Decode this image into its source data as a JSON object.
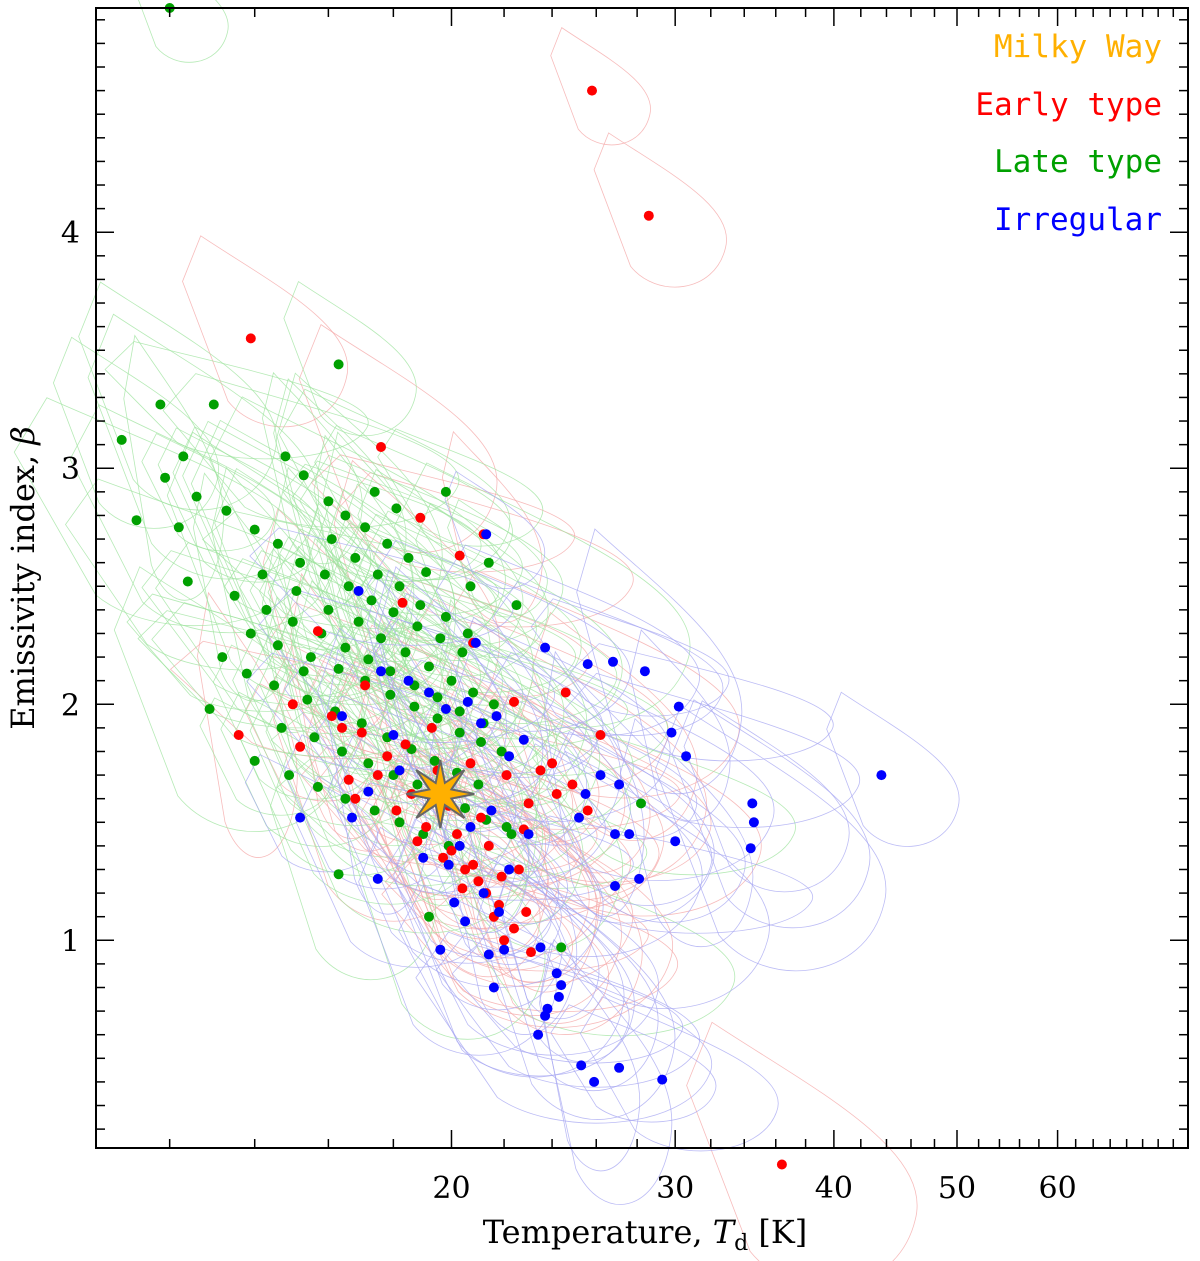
{
  "chart_data": {
    "type": "scatter",
    "xlabel": "Temperature, ",
    "xlabel_symbol": "T",
    "xlabel_subscript": "d",
    "xlabel_unit": " [K]",
    "ylabel": "Emissivity index, ",
    "ylabel_symbol": "β",
    "x_scale": "log",
    "xlim": [
      10.5,
      76
    ],
    "ylim": [
      0.12,
      4.95
    ],
    "x_ticks": [
      20,
      30,
      40,
      50,
      60
    ],
    "y_ticks": [
      1,
      2,
      3,
      4
    ],
    "grid": false,
    "legend_position": "top-right",
    "legend": [
      "Milky Way",
      "Early type",
      "Late type",
      "Irregular"
    ],
    "colors": {
      "milky_way": "#FFB000",
      "early": "#FF0000",
      "late": "#00A000",
      "irregular": "#0000FF"
    },
    "milky_way": {
      "T": 19.6,
      "beta": 1.62
    },
    "series": [
      {
        "name": "Early type",
        "color": "#FF0000",
        "points": [
          [
            25.8,
            4.6
          ],
          [
            28.6,
            4.07
          ],
          [
            13.9,
            3.55
          ],
          [
            17.6,
            3.09
          ],
          [
            36.4,
            0.05
          ],
          [
            18.9,
            2.79
          ],
          [
            20.3,
            2.63
          ],
          [
            21.2,
            2.72
          ],
          [
            15.7,
            2.31
          ],
          [
            18.3,
            2.43
          ],
          [
            20.8,
            2.26
          ],
          [
            17.1,
            2.08
          ],
          [
            22.4,
            2.01
          ],
          [
            24.6,
            2.05
          ],
          [
            13.6,
            1.87
          ],
          [
            15.2,
            1.82
          ],
          [
            16.4,
            1.9
          ],
          [
            17.8,
            1.78
          ],
          [
            19.5,
            1.72
          ],
          [
            20.7,
            1.75
          ],
          [
            22.1,
            1.7
          ],
          [
            23.5,
            1.72
          ],
          [
            24.9,
            1.66
          ],
          [
            26.2,
            1.87
          ],
          [
            16.8,
            1.6
          ],
          [
            18.1,
            1.55
          ],
          [
            19.1,
            1.48
          ],
          [
            20.2,
            1.45
          ],
          [
            21.4,
            1.4
          ],
          [
            22.6,
            1.3
          ],
          [
            18.8,
            1.42
          ],
          [
            19.7,
            1.35
          ],
          [
            20.5,
            1.3
          ],
          [
            21.0,
            1.25
          ],
          [
            21.8,
            1.15
          ],
          [
            22.4,
            1.05
          ],
          [
            23.1,
            0.95
          ],
          [
            20.0,
            1.38
          ],
          [
            20.8,
            1.32
          ],
          [
            21.3,
            1.2
          ],
          [
            21.6,
            1.1
          ],
          [
            22.0,
            1.0
          ],
          [
            17.5,
            1.7
          ],
          [
            18.6,
            1.62
          ],
          [
            19.9,
            1.57
          ],
          [
            21.1,
            1.52
          ],
          [
            22.8,
            1.47
          ],
          [
            24.2,
            1.62
          ],
          [
            25.6,
            1.55
          ],
          [
            16.1,
            1.95
          ],
          [
            17.0,
            1.88
          ],
          [
            18.4,
            1.83
          ],
          [
            19.3,
            1.9
          ],
          [
            23.0,
            1.58
          ],
          [
            24.0,
            1.75
          ],
          [
            15.0,
            2.0
          ],
          [
            16.6,
            1.68
          ],
          [
            20.4,
            1.22
          ],
          [
            21.9,
            1.27
          ],
          [
            22.9,
            1.12
          ]
        ]
      },
      {
        "name": "Late type",
        "color": "#00A000",
        "points": [
          [
            12.0,
            4.95
          ],
          [
            16.3,
            3.44
          ],
          [
            11.0,
            3.12
          ],
          [
            11.8,
            3.27
          ],
          [
            12.3,
            3.05
          ],
          [
            13.0,
            3.27
          ],
          [
            14.8,
            3.05
          ],
          [
            15.3,
            2.97
          ],
          [
            16.0,
            2.86
          ],
          [
            16.5,
            2.8
          ],
          [
            17.1,
            2.75
          ],
          [
            17.8,
            2.68
          ],
          [
            18.5,
            2.62
          ],
          [
            11.3,
            2.78
          ],
          [
            11.9,
            2.96
          ],
          [
            12.6,
            2.88
          ],
          [
            13.3,
            2.82
          ],
          [
            14.0,
            2.74
          ],
          [
            14.6,
            2.68
          ],
          [
            15.2,
            2.6
          ],
          [
            15.9,
            2.55
          ],
          [
            16.6,
            2.5
          ],
          [
            17.3,
            2.44
          ],
          [
            18.0,
            2.39
          ],
          [
            18.8,
            2.33
          ],
          [
            19.6,
            2.28
          ],
          [
            20.4,
            2.22
          ],
          [
            12.4,
            2.52
          ],
          [
            13.5,
            2.46
          ],
          [
            14.3,
            2.4
          ],
          [
            15.0,
            2.35
          ],
          [
            15.8,
            2.3
          ],
          [
            16.5,
            2.24
          ],
          [
            17.2,
            2.19
          ],
          [
            17.9,
            2.14
          ],
          [
            18.7,
            2.08
          ],
          [
            19.5,
            2.03
          ],
          [
            20.3,
            1.97
          ],
          [
            21.2,
            1.92
          ],
          [
            12.9,
            1.98
          ],
          [
            13.8,
            2.13
          ],
          [
            14.5,
            2.08
          ],
          [
            15.4,
            2.02
          ],
          [
            16.2,
            1.97
          ],
          [
            17.0,
            1.92
          ],
          [
            17.8,
            1.86
          ],
          [
            18.6,
            1.81
          ],
          [
            19.4,
            1.76
          ],
          [
            20.2,
            1.71
          ],
          [
            21.0,
            1.66
          ],
          [
            14.0,
            1.76
          ],
          [
            14.9,
            1.7
          ],
          [
            15.7,
            1.65
          ],
          [
            16.5,
            1.6
          ],
          [
            17.4,
            1.55
          ],
          [
            18.2,
            1.5
          ],
          [
            19.0,
            1.45
          ],
          [
            19.9,
            1.4
          ],
          [
            16.3,
            1.28
          ],
          [
            19.2,
            1.1
          ],
          [
            22.3,
            1.45
          ],
          [
            28.2,
            1.58
          ],
          [
            24.4,
            0.97
          ],
          [
            16.8,
            2.62
          ],
          [
            17.5,
            2.55
          ],
          [
            18.2,
            2.5
          ],
          [
            18.9,
            2.42
          ],
          [
            19.8,
            2.37
          ],
          [
            20.6,
            2.3
          ],
          [
            16.1,
            2.7
          ],
          [
            16.9,
            2.35
          ],
          [
            17.6,
            2.28
          ],
          [
            18.4,
            2.22
          ],
          [
            19.2,
            2.16
          ],
          [
            20.0,
            2.1
          ],
          [
            20.8,
            2.05
          ],
          [
            21.6,
            2.0
          ],
          [
            15.5,
            2.2
          ],
          [
            16.3,
            2.15
          ],
          [
            17.1,
            2.1
          ],
          [
            17.9,
            2.04
          ],
          [
            18.7,
            1.99
          ],
          [
            19.5,
            1.94
          ],
          [
            20.3,
            1.88
          ],
          [
            21.1,
            1.84
          ],
          [
            21.9,
            1.8
          ],
          [
            14.7,
            1.9
          ],
          [
            15.6,
            1.86
          ],
          [
            16.4,
            1.8
          ],
          [
            17.2,
            1.75
          ],
          [
            18.0,
            1.7
          ],
          [
            18.8,
            1.66
          ],
          [
            20.5,
            1.56
          ],
          [
            21.3,
            1.51
          ],
          [
            22.1,
            1.48
          ],
          [
            13.2,
            2.2
          ],
          [
            13.9,
            2.3
          ],
          [
            14.6,
            2.25
          ],
          [
            15.3,
            2.14
          ],
          [
            16.0,
            2.4
          ],
          [
            19.8,
            2.9
          ],
          [
            18.1,
            2.83
          ],
          [
            17.4,
            2.9
          ],
          [
            12.2,
            2.75
          ],
          [
            22.5,
            2.42
          ],
          [
            21.4,
            2.6
          ],
          [
            20.7,
            2.5
          ],
          [
            19.1,
            2.56
          ],
          [
            15.1,
            2.48
          ],
          [
            14.2,
            2.55
          ]
        ]
      },
      {
        "name": "Irregular",
        "color": "#0000FF",
        "points": [
          [
            21.3,
            2.72
          ],
          [
            43.6,
            1.7
          ],
          [
            34.5,
            1.58
          ],
          [
            34.6,
            1.5
          ],
          [
            34.4,
            1.39
          ],
          [
            30.2,
            1.99
          ],
          [
            30.6,
            1.78
          ],
          [
            29.8,
            1.88
          ],
          [
            30.0,
            1.42
          ],
          [
            28.4,
            2.14
          ],
          [
            26.8,
            2.18
          ],
          [
            25.6,
            2.17
          ],
          [
            23.7,
            2.24
          ],
          [
            26.2,
            1.7
          ],
          [
            25.5,
            1.62
          ],
          [
            27.1,
            1.66
          ],
          [
            26.9,
            1.45
          ],
          [
            27.6,
            1.45
          ],
          [
            25.2,
            1.52
          ],
          [
            26.9,
            1.23
          ],
          [
            28.1,
            1.26
          ],
          [
            23.5,
            0.97
          ],
          [
            24.2,
            0.86
          ],
          [
            24.4,
            0.81
          ],
          [
            24.3,
            0.76
          ],
          [
            23.8,
            0.71
          ],
          [
            23.7,
            0.68
          ],
          [
            23.4,
            0.6
          ],
          [
            25.3,
            0.47
          ],
          [
            25.9,
            0.4
          ],
          [
            27.1,
            0.46
          ],
          [
            29.3,
            0.41
          ],
          [
            21.6,
            0.8
          ],
          [
            22.0,
            0.96
          ],
          [
            23.0,
            1.45
          ],
          [
            22.2,
            1.3
          ],
          [
            21.2,
            1.2
          ],
          [
            20.5,
            1.08
          ],
          [
            19.6,
            0.96
          ],
          [
            21.4,
            0.94
          ],
          [
            16.9,
            2.48
          ],
          [
            17.6,
            2.14
          ],
          [
            18.5,
            2.1
          ],
          [
            19.2,
            2.05
          ],
          [
            19.8,
            1.98
          ],
          [
            21.1,
            1.92
          ],
          [
            20.6,
            2.01
          ],
          [
            20.9,
            2.26
          ],
          [
            21.7,
            1.95
          ],
          [
            17.2,
            1.63
          ],
          [
            15.2,
            1.52
          ],
          [
            16.7,
            1.52
          ],
          [
            17.5,
            1.26
          ],
          [
            19.0,
            1.35
          ],
          [
            19.9,
            1.32
          ],
          [
            20.3,
            1.4
          ],
          [
            21.5,
            1.55
          ],
          [
            22.2,
            1.78
          ],
          [
            22.8,
            1.85
          ],
          [
            18.2,
            1.72
          ],
          [
            16.4,
            1.95
          ],
          [
            18.0,
            1.87
          ],
          [
            19.3,
            1.6
          ],
          [
            20.7,
            1.48
          ],
          [
            21.8,
            1.12
          ],
          [
            20.1,
            1.16
          ]
        ]
      }
    ]
  }
}
